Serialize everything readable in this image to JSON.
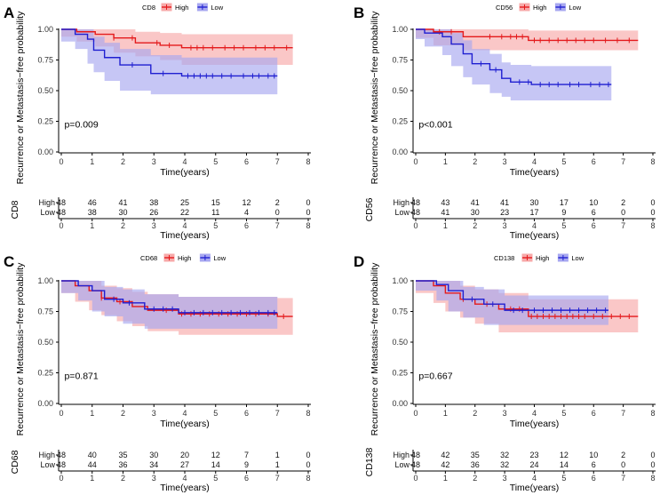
{
  "colors": {
    "high": "#e41a1c",
    "low": "#1f1fd1",
    "high_fill": "#f7a9a9",
    "low_fill": "#a8a8f0"
  },
  "chart_data": [
    {
      "panel": "A",
      "marker": "CD8",
      "type": "line",
      "title": "",
      "xlabel": "Time(years)",
      "ylabel": "Recurrence or Metastasis−free  probability",
      "xlim": [
        0,
        8
      ],
      "ylim": [
        0,
        1
      ],
      "xticks": [
        "0",
        "1",
        "2",
        "3",
        "4",
        "5",
        "6",
        "7",
        "8"
      ],
      "yticks": [
        "0.00",
        "0.25",
        "0.50",
        "0.75",
        "1.00"
      ],
      "legend": [
        "High",
        "Low"
      ],
      "pvalue": "p=0.009",
      "series": [
        {
          "name": "High",
          "x": [
            0,
            0.5,
            1.1,
            1.7,
            2.4,
            3.2,
            3.9,
            7.5
          ],
          "y": [
            1,
            0.98,
            0.96,
            0.93,
            0.89,
            0.87,
            0.85,
            0.85
          ],
          "lower": [
            1,
            0.94,
            0.9,
            0.86,
            0.81,
            0.78,
            0.75,
            0.71
          ],
          "upper": [
            1,
            1,
            1,
            1,
            0.98,
            0.97,
            0.96,
            0.96
          ],
          "censor_x": [
            1.7,
            2.3,
            3.1,
            3.5,
            4.2,
            4.4,
            4.6,
            4.9,
            5.3,
            5.6,
            5.9,
            6.3,
            6.6,
            6.9,
            7.3
          ]
        },
        {
          "name": "Low",
          "x": [
            0,
            0.45,
            0.85,
            1.05,
            1.4,
            1.9,
            2.9,
            3.9,
            7.0
          ],
          "y": [
            1,
            0.96,
            0.92,
            0.83,
            0.77,
            0.71,
            0.64,
            0.62,
            0.62
          ],
          "lower": [
            1,
            0.9,
            0.84,
            0.72,
            0.65,
            0.58,
            0.5,
            0.47,
            0.47
          ],
          "upper": [
            1,
            1,
            1,
            0.94,
            0.89,
            0.84,
            0.79,
            0.77,
            0.77
          ],
          "censor_x": [
            2.3,
            3.3,
            4.1,
            4.3,
            4.5,
            4.7,
            4.9,
            5.2,
            5.5,
            5.9,
            6.2,
            6.4,
            6.7,
            6.9
          ]
        }
      ],
      "risk_table": {
        "label": "CD8",
        "High": [
          "48",
          "46",
          "41",
          "38",
          "25",
          "15",
          "12",
          "2",
          "0"
        ],
        "Low": [
          "48",
          "38",
          "30",
          "26",
          "22",
          "11",
          "4",
          "0",
          "0"
        ]
      }
    },
    {
      "panel": "B",
      "marker": "CD56",
      "type": "line",
      "title": "",
      "xlabel": "Time(years)",
      "ylabel": "Recurrence or Metastasis−free  probability",
      "xlim": [
        0,
        8
      ],
      "ylim": [
        0,
        1
      ],
      "xticks": [
        "0",
        "1",
        "2",
        "3",
        "4",
        "5",
        "6",
        "7",
        "8"
      ],
      "yticks": [
        "0.00",
        "0.25",
        "0.50",
        "0.75",
        "1.00"
      ],
      "legend": [
        "High",
        "Low"
      ],
      "pvalue": "p<0.001",
      "series": [
        {
          "name": "High",
          "x": [
            0,
            0.6,
            1.6,
            3.8,
            7.5
          ],
          "y": [
            1,
            0.98,
            0.94,
            0.91,
            0.91
          ],
          "lower": [
            1,
            0.93,
            0.87,
            0.83,
            0.83
          ],
          "upper": [
            1,
            1,
            1,
            0.99,
            0.99
          ],
          "censor_x": [
            0.8,
            1.2,
            2.5,
            2.9,
            3.2,
            3.4,
            3.6,
            4.0,
            4.2,
            4.5,
            4.8,
            5.1,
            5.4,
            5.7,
            6.0,
            6.4,
            6.8,
            7.2
          ]
        },
        {
          "name": "Low",
          "x": [
            0,
            0.3,
            0.9,
            1.2,
            1.6,
            1.9,
            2.5,
            2.9,
            3.2,
            3.9,
            6.6
          ],
          "y": [
            1,
            0.97,
            0.94,
            0.88,
            0.8,
            0.72,
            0.67,
            0.6,
            0.57,
            0.55,
            0.55
          ],
          "lower": [
            1,
            0.92,
            0.86,
            0.79,
            0.7,
            0.61,
            0.55,
            0.48,
            0.45,
            0.42,
            0.42
          ],
          "upper": [
            1,
            1,
            1,
            0.97,
            0.91,
            0.84,
            0.8,
            0.73,
            0.71,
            0.7,
            0.7
          ],
          "censor_x": [
            2.2,
            2.7,
            3.5,
            3.8,
            4.2,
            4.5,
            4.8,
            5.2,
            5.5,
            5.9,
            6.2,
            6.5
          ]
        }
      ],
      "risk_table": {
        "label": "CD56",
        "High": [
          "48",
          "43",
          "41",
          "41",
          "30",
          "17",
          "10",
          "2",
          "0"
        ],
        "Low": [
          "48",
          "41",
          "30",
          "23",
          "17",
          "9",
          "6",
          "0",
          "0"
        ]
      }
    },
    {
      "panel": "C",
      "marker": "CD68",
      "type": "line",
      "title": "",
      "xlabel": "Time(years)",
      "ylabel": "Recurrence or Metastasis−free  probability",
      "xlim": [
        0,
        8
      ],
      "ylim": [
        0,
        1
      ],
      "xticks": [
        "0",
        "1",
        "2",
        "3",
        "4",
        "5",
        "6",
        "7",
        "8"
      ],
      "yticks": [
        "0.00",
        "0.25",
        "0.50",
        "0.75",
        "1.00"
      ],
      "legend": [
        "High",
        "Low"
      ],
      "pvalue": "p=0.871",
      "series": [
        {
          "name": "High",
          "x": [
            0,
            0.45,
            0.9,
            1.3,
            1.8,
            2.3,
            2.8,
            3.8,
            7.0,
            7.5
          ],
          "y": [
            1,
            0.96,
            0.92,
            0.86,
            0.83,
            0.79,
            0.76,
            0.73,
            0.71,
            0.71
          ],
          "lower": [
            1,
            0.9,
            0.83,
            0.76,
            0.72,
            0.67,
            0.63,
            0.59,
            0.56,
            0.56
          ],
          "upper": [
            1,
            1,
            1,
            0.96,
            0.94,
            0.91,
            0.89,
            0.87,
            0.86,
            0.86
          ],
          "censor_x": [
            1.3,
            1.9,
            2.7,
            3.4,
            3.9,
            4.2,
            4.5,
            4.8,
            5.1,
            5.4,
            5.7,
            6.0,
            6.3,
            6.7,
            7.2
          ]
        },
        {
          "name": "Low",
          "x": [
            0,
            0.55,
            1.0,
            1.4,
            2.0,
            2.7,
            3.8,
            7.0
          ],
          "y": [
            1,
            0.96,
            0.92,
            0.85,
            0.82,
            0.77,
            0.74,
            0.74
          ],
          "lower": [
            1,
            0.9,
            0.84,
            0.75,
            0.71,
            0.65,
            0.61,
            0.61
          ],
          "upper": [
            1,
            1,
            1,
            0.95,
            0.93,
            0.89,
            0.87,
            0.87
          ],
          "censor_x": [
            1.7,
            2.2,
            3.0,
            3.3,
            3.6,
            4.0,
            4.3,
            4.6,
            4.9,
            5.2,
            5.5,
            5.8,
            6.1,
            6.4,
            6.7,
            6.9
          ]
        }
      ],
      "risk_table": {
        "label": "CD68",
        "High": [
          "48",
          "40",
          "35",
          "30",
          "20",
          "12",
          "7",
          "1",
          "0"
        ],
        "Low": [
          "48",
          "44",
          "36",
          "34",
          "27",
          "14",
          "9",
          "1",
          "0"
        ]
      }
    },
    {
      "panel": "D",
      "marker": "CD138",
      "type": "line",
      "title": "",
      "xlabel": "Time(years)",
      "ylabel": "Recurrence or Metastasis−free  probability",
      "xlim": [
        0,
        8
      ],
      "ylim": [
        0,
        1
      ],
      "xticks": [
        "0",
        "1",
        "2",
        "3",
        "4",
        "5",
        "6",
        "7",
        "8"
      ],
      "yticks": [
        "0.00",
        "0.25",
        "0.50",
        "0.75",
        "1.00"
      ],
      "legend": [
        "High",
        "Low"
      ],
      "pvalue": "p=0.667",
      "series": [
        {
          "name": "High",
          "x": [
            0,
            0.6,
            1.0,
            1.5,
            2.0,
            2.8,
            3.8,
            7.5
          ],
          "y": [
            1,
            0.96,
            0.9,
            0.85,
            0.81,
            0.77,
            0.71,
            0.71
          ],
          "lower": [
            1,
            0.9,
            0.82,
            0.75,
            0.7,
            0.65,
            0.58,
            0.58
          ],
          "upper": [
            1,
            1,
            1,
            0.96,
            0.93,
            0.9,
            0.85,
            0.85
          ],
          "censor_x": [
            1.6,
            2.4,
            3.2,
            3.5,
            3.9,
            4.1,
            4.3,
            4.5,
            4.7,
            4.9,
            5.1,
            5.3,
            5.5,
            5.7,
            6.0,
            6.3,
            6.6,
            6.9,
            7.2
          ]
        },
        {
          "name": "Low",
          "x": [
            0,
            0.7,
            1.1,
            1.6,
            2.3,
            3.0,
            6.5
          ],
          "y": [
            1,
            0.97,
            0.92,
            0.85,
            0.81,
            0.76,
            0.76
          ],
          "lower": [
            1,
            0.92,
            0.84,
            0.75,
            0.7,
            0.64,
            0.64
          ],
          "upper": [
            1,
            1,
            1,
            0.95,
            0.93,
            0.88,
            0.88
          ],
          "censor_x": [
            1.9,
            2.6,
            3.3,
            3.6,
            4.0,
            4.3,
            4.6,
            4.9,
            5.2,
            5.5,
            5.8,
            6.1,
            6.4
          ]
        }
      ],
      "risk_table": {
        "label": "CD138",
        "High": [
          "48",
          "42",
          "35",
          "32",
          "23",
          "12",
          "10",
          "2",
          "0"
        ],
        "Low": [
          "48",
          "42",
          "36",
          "32",
          "24",
          "14",
          "6",
          "0",
          "0"
        ]
      }
    }
  ]
}
